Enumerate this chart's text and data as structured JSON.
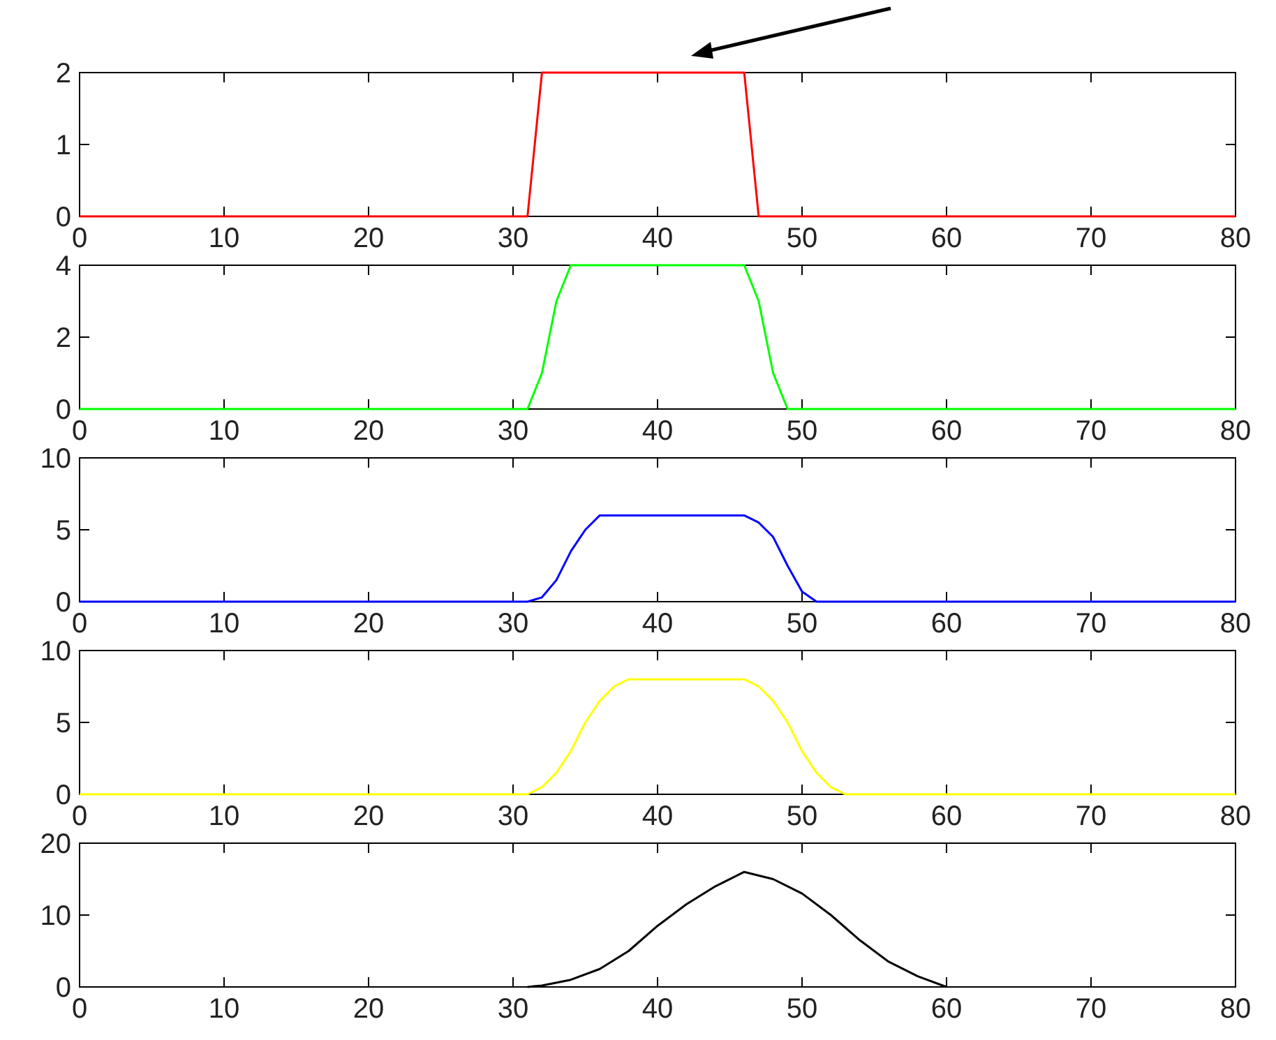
{
  "chart_data": [
    {
      "type": "line",
      "x": [
        0,
        31,
        32,
        46,
        47,
        80
      ],
      "series": [
        {
          "color": "#ff0000",
          "values": [
            0,
            0,
            2,
            2,
            0,
            0
          ]
        }
      ],
      "xlim": [
        0,
        80
      ],
      "xticks": [
        0,
        10,
        20,
        30,
        40,
        50,
        60,
        70,
        80
      ],
      "ylim": [
        0,
        2
      ],
      "yticks": [
        0,
        1,
        2
      ]
    },
    {
      "type": "line",
      "x": [
        0,
        31,
        32,
        33,
        34,
        46,
        47,
        48,
        49,
        80
      ],
      "series": [
        {
          "color": "#00ff00",
          "values": [
            0,
            0,
            1,
            3,
            4,
            4,
            3,
            1,
            0,
            0
          ]
        }
      ],
      "xlim": [
        0,
        80
      ],
      "xticks": [
        0,
        10,
        20,
        30,
        40,
        50,
        60,
        70,
        80
      ],
      "ylim": [
        0,
        4
      ],
      "yticks": [
        0,
        2,
        4
      ]
    },
    {
      "type": "line",
      "x": [
        0,
        31,
        32,
        33,
        34,
        35,
        36,
        46,
        47,
        48,
        49,
        50,
        51,
        80
      ],
      "series": [
        {
          "color": "#0000ff",
          "values": [
            0,
            0,
            0.3,
            1.5,
            3.5,
            5,
            6,
            6,
            5.5,
            4.5,
            2.5,
            0.7,
            0,
            0
          ]
        }
      ],
      "xlim": [
        0,
        80
      ],
      "xticks": [
        0,
        10,
        20,
        30,
        40,
        50,
        60,
        70,
        80
      ],
      "ylim": [
        0,
        10
      ],
      "yticks": [
        0,
        5,
        10
      ]
    },
    {
      "type": "line",
      "x": [
        0,
        31,
        32,
        33,
        34,
        35,
        36,
        37,
        38,
        46,
        47,
        48,
        49,
        50,
        51,
        52,
        53,
        80
      ],
      "series": [
        {
          "color": "#ffff00",
          "values": [
            0,
            0,
            0.5,
            1.5,
            3,
            5,
            6.5,
            7.5,
            8,
            8,
            7.5,
            6.5,
            5,
            3,
            1.5,
            0.5,
            0,
            0
          ]
        }
      ],
      "xlim": [
        0,
        80
      ],
      "xticks": [
        0,
        10,
        20,
        30,
        40,
        50,
        60,
        70,
        80
      ],
      "ylim": [
        0,
        10
      ],
      "yticks": [
        0,
        5,
        10
      ]
    },
    {
      "type": "line",
      "x": [
        31,
        32,
        34,
        36,
        38,
        40,
        42,
        44,
        46,
        48,
        50,
        52,
        54,
        56,
        58,
        60
      ],
      "series": [
        {
          "color": "#000000",
          "values": [
            0,
            0.2,
            1,
            2.5,
            5,
            8.5,
            11.5,
            14,
            16,
            15,
            13,
            10,
            6.5,
            3.5,
            1.5,
            0
          ]
        }
      ],
      "xlim": [
        0,
        80
      ],
      "xticks": [
        0,
        10,
        20,
        30,
        40,
        50,
        60,
        70,
        80
      ],
      "ylim": [
        0,
        20
      ],
      "yticks": [
        0,
        10,
        20
      ]
    }
  ]
}
